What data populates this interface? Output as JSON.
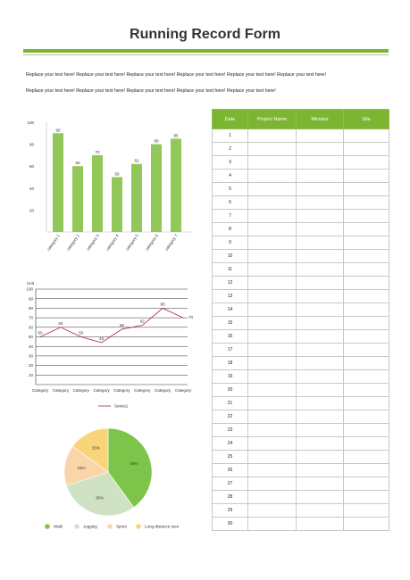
{
  "title": "Running Record Form",
  "intro_lines": [
    "Replace your text here! Replace your text here! Replace your text here! Replace your text here! Replace your text here! Replace your text here!",
    "Replace your text here! Replace your text here! Replace your text here! Replace your text here! Replace your text here!"
  ],
  "colors": {
    "accent": "#7cb531",
    "bar": "#92c75a",
    "line": "#b02530",
    "walk": "#7dc54a",
    "jogging": "#cfe3c4",
    "sprint": "#fad5a8",
    "long_distance": "#f9d57a"
  },
  "table": {
    "headers": [
      "Date",
      "Project Name",
      "Minutes",
      "Site"
    ],
    "rows": [
      "1",
      "2",
      "3",
      "4",
      "5",
      "6",
      "7",
      "8",
      "9",
      "10",
      "11",
      "12",
      "13",
      "14",
      "15",
      "16",
      "17",
      "18",
      "19",
      "20",
      "21",
      "22",
      "23",
      "24",
      "25",
      "26",
      "27",
      "28",
      "29",
      "30"
    ]
  },
  "chart_data": [
    {
      "type": "bar",
      "categories": [
        "category 1",
        "category 2",
        "category 3",
        "category 4",
        "category 5",
        "category 6",
        "category 7"
      ],
      "values": [
        90,
        60,
        70,
        50,
        62,
        80,
        85
      ],
      "ylim": [
        0,
        100
      ],
      "yticks": [
        "20",
        "40",
        "60",
        "80",
        "100"
      ],
      "grid": false
    },
    {
      "type": "line",
      "ylabel": "Unit",
      "categories": [
        "Category",
        "Category",
        "Category",
        "Category",
        "Category",
        "Category",
        "Category",
        "Category"
      ],
      "series": [
        {
          "name": "Series1",
          "values": [
            50,
            60,
            50,
            44,
            58,
            62,
            80,
            70
          ]
        }
      ],
      "ylim": [
        0,
        100
      ],
      "yticks": [
        "10",
        "20",
        "30",
        "40",
        "50",
        "60",
        "70",
        "80",
        "90",
        "100"
      ],
      "grid": true,
      "legend": "bottom"
    },
    {
      "type": "pie",
      "labels": [
        "Walk",
        "Jogging",
        "Sprint",
        "Long-distance race"
      ],
      "values": [
        40,
        30,
        15,
        15
      ],
      "display": [
        "40%",
        "30%",
        "15%",
        "15%"
      ],
      "legend": "bottom"
    }
  ]
}
